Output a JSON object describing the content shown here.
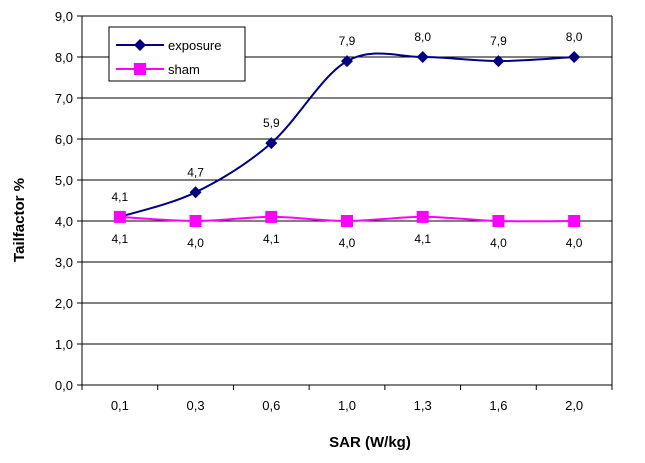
{
  "chart_data": {
    "type": "line",
    "categories": [
      "0,1",
      "0,3",
      "0,6",
      "1,0",
      "1,3",
      "1,6",
      "2,0"
    ],
    "xlabel": "SAR (W/kg)",
    "ylabel": "Tailfactor %",
    "ylim": [
      0,
      9
    ],
    "y_ticks": [
      "0,0",
      "1,0",
      "2,0",
      "3,0",
      "4,0",
      "5,0",
      "6,0",
      "7,0",
      "8,0",
      "9,0"
    ],
    "grid": true,
    "legend_position": "top-left",
    "series": [
      {
        "name": "exposure",
        "color": "#000080",
        "marker": "diamond",
        "values": [
          4.1,
          4.7,
          5.9,
          7.9,
          8.0,
          7.9,
          8.0
        ],
        "labels": [
          "4,1",
          "4,7",
          "5,9",
          "7,9",
          "8,0",
          "7,9",
          "8,0"
        ]
      },
      {
        "name": "sham",
        "color": "#ff00ff",
        "marker": "square",
        "values": [
          4.1,
          4.0,
          4.1,
          4.0,
          4.1,
          4.0,
          4.0
        ],
        "labels": [
          "4,1",
          "4,0",
          "4,1",
          "4,0",
          "4,1",
          "4,0",
          "4,0"
        ]
      }
    ]
  }
}
